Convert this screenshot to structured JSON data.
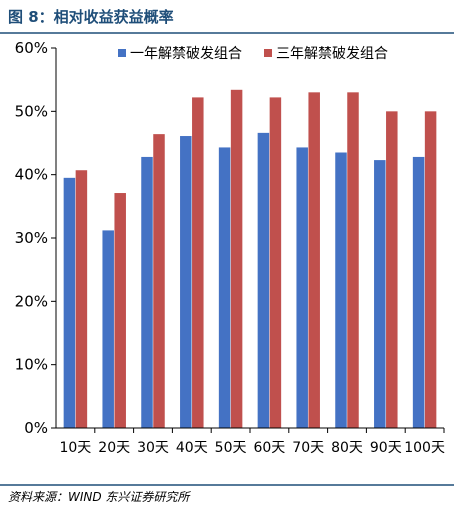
{
  "figure": {
    "title": "图 8：相对收益获益概率",
    "source": "资料来源：WIND 东兴证券研究所"
  },
  "chart_data": {
    "type": "bar",
    "categories": [
      "10天",
      "20天",
      "30天",
      "40天",
      "50天",
      "60天",
      "70天",
      "80天",
      "90天",
      "100天"
    ],
    "series": [
      {
        "name": "一年解禁破发组合",
        "color": "#4472c4",
        "values": [
          39.5,
          31.2,
          42.8,
          46.1,
          44.3,
          46.6,
          44.3,
          43.5,
          42.3,
          42.8
        ]
      },
      {
        "name": "三年解禁破发组合",
        "color": "#c0504d",
        "values": [
          40.7,
          37.1,
          46.4,
          52.2,
          53.4,
          52.2,
          53.0,
          53.0,
          50.0,
          50.0
        ]
      }
    ],
    "ylim": [
      0,
      60
    ],
    "yticks": [
      0,
      10,
      20,
      30,
      40,
      50,
      60
    ],
    "ytick_format": "percent",
    "legend_position": "top-right",
    "grid": false
  }
}
